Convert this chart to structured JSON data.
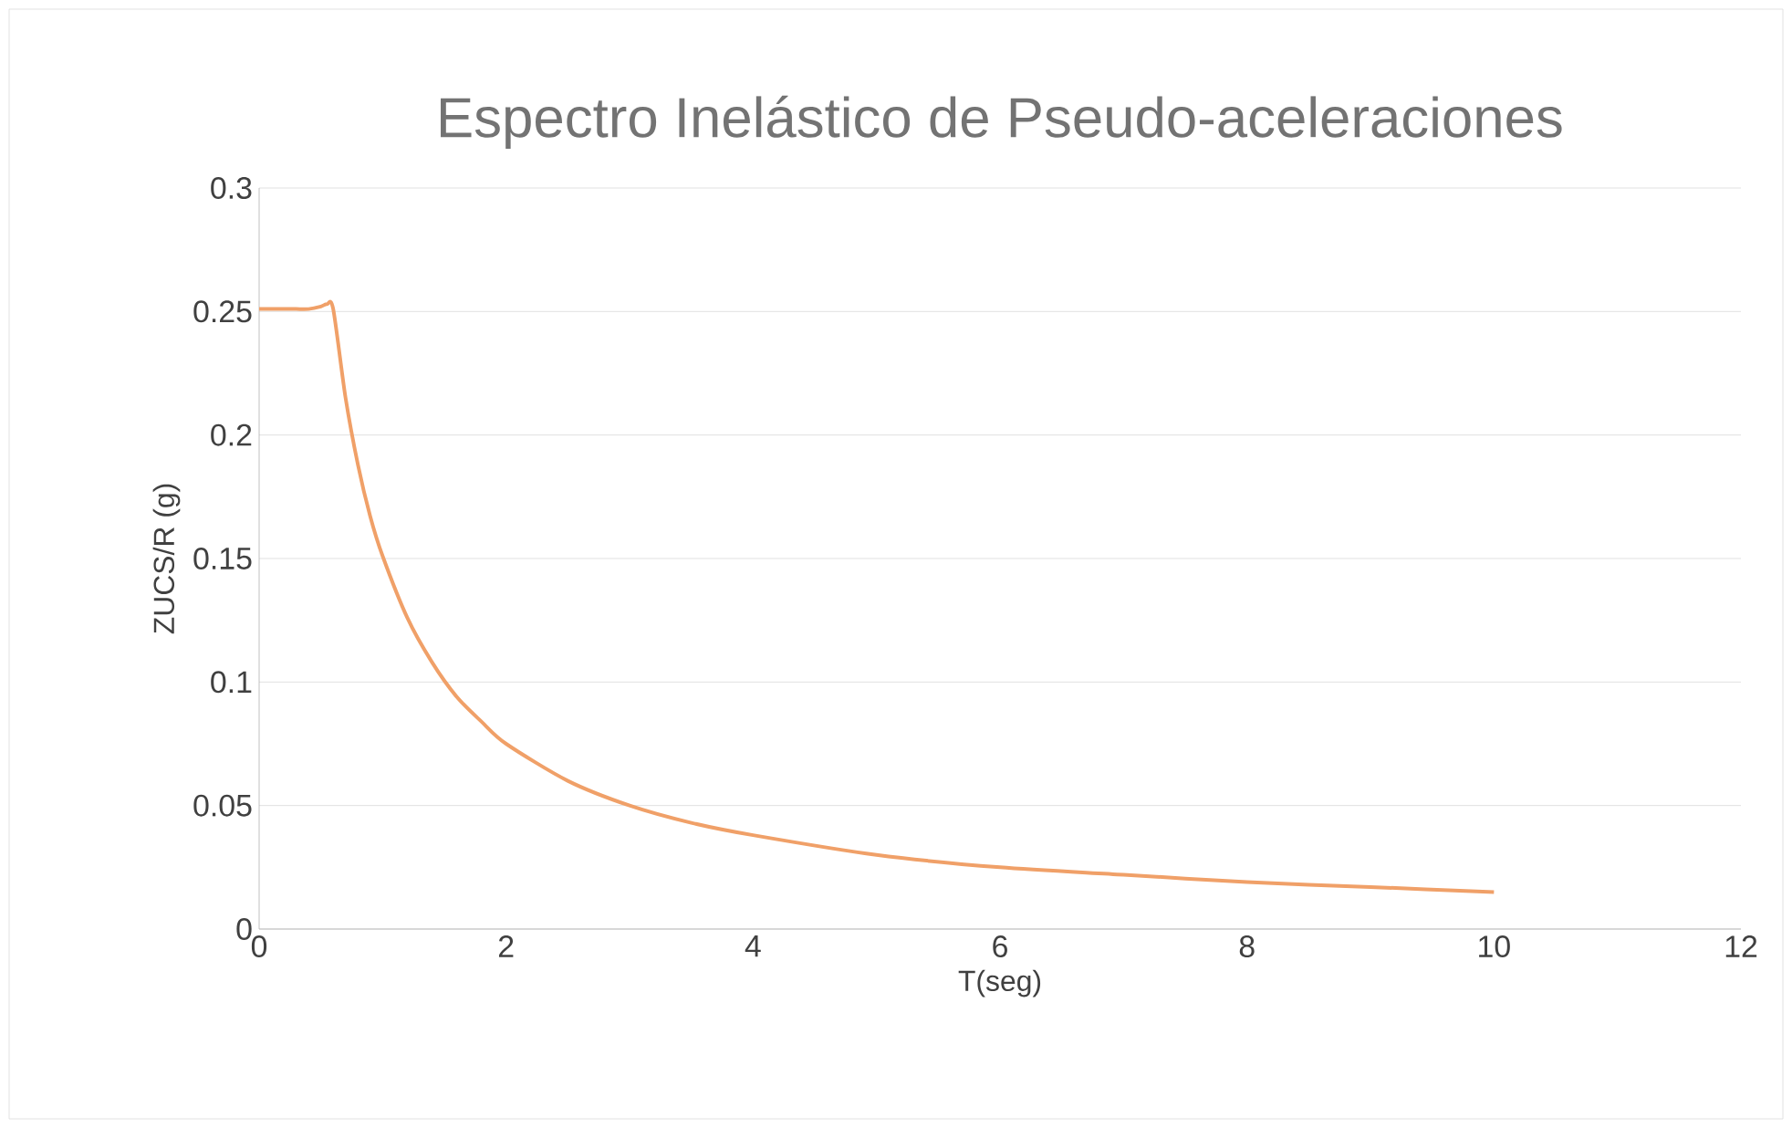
{
  "chart_data": {
    "type": "line",
    "title": "Espectro Inelástico de Pseudo-aceleraciones",
    "xlabel": "T(seg)",
    "ylabel": "ZUCS/R (g)",
    "series": [
      {
        "color": "#f0a068",
        "x": [
          0,
          0.1,
          0.2,
          0.3,
          0.4,
          0.5,
          0.55,
          0.6,
          0.7,
          0.8,
          0.9,
          1.0,
          1.2,
          1.4,
          1.6,
          1.8,
          2,
          2.5,
          3,
          3.5,
          4,
          5,
          6,
          7,
          8,
          9,
          10
        ],
        "values": [
          0.251,
          0.251,
          0.251,
          0.251,
          0.251,
          0.252,
          0.253,
          0.251,
          0.215,
          0.188,
          0.167,
          0.151,
          0.126,
          0.108,
          0.094,
          0.084,
          0.075,
          0.06,
          0.05,
          0.043,
          0.038,
          0.03,
          0.025,
          0.022,
          0.019,
          0.017,
          0.015
        ]
      }
    ],
    "xlim": [
      0,
      12
    ],
    "xticks": [
      0,
      2,
      4,
      6,
      8,
      10,
      12
    ],
    "ylim": [
      0,
      0.3
    ],
    "yticks": [
      0,
      0.05,
      0.1,
      0.15,
      0.2,
      0.25,
      0.3
    ],
    "grid": "y"
  }
}
